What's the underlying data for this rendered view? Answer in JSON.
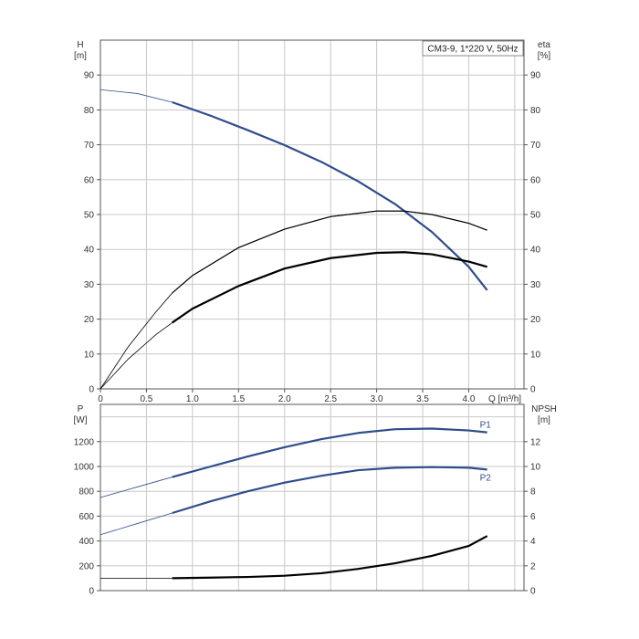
{
  "chart_data": [
    {
      "type": "line",
      "panel": "head-efficiency",
      "legend_text": "CM3-9, 1*220 V, 50Hz",
      "x_label": "Q [m³/h]",
      "left_axis": {
        "label_line1": "H",
        "label_line2": "[m]",
        "range": [
          0,
          100
        ],
        "ticks": [
          0,
          10,
          20,
          30,
          40,
          50,
          60,
          70,
          80,
          90
        ]
      },
      "right_axis": {
        "label_line1": "eta",
        "label_line2": "[%]",
        "range": [
          0,
          100
        ],
        "ticks": [
          0,
          10,
          20,
          30,
          40,
          50,
          60,
          70,
          80,
          90
        ]
      },
      "x_axis": {
        "range": [
          0,
          4.6
        ],
        "ticks": [
          0,
          0.5,
          1.0,
          1.5,
          2.0,
          2.5,
          3.0,
          3.5,
          4.0
        ],
        "tick_labels": [
          "0",
          "0.5",
          "1.0",
          "1.5",
          "2.0",
          "2.5",
          "3.0",
          "3.5",
          "4.0"
        ]
      },
      "grid": true,
      "duty_range_start": 0.78,
      "series": [
        {
          "key": "H",
          "axis": "left",
          "color": "#2f4d8c",
          "x": [
            0,
            0.4,
            0.78,
            1.2,
            1.6,
            2.0,
            2.4,
            2.8,
            3.2,
            3.6,
            4.0,
            4.2
          ],
          "y": [
            85.8,
            84.7,
            82.2,
            78.3,
            74.2,
            69.9,
            65.1,
            59.5,
            53.0,
            45.0,
            35.0,
            28.3
          ]
        },
        {
          "key": "eta-pump",
          "axis": "right",
          "color": "#000000",
          "x": [
            0,
            0.3,
            0.6,
            0.78,
            1.0,
            1.5,
            2.0,
            2.5,
            3.0,
            3.3,
            3.6,
            4.0,
            4.2
          ],
          "y": [
            0,
            12,
            22,
            27.5,
            32.5,
            40.5,
            45.8,
            49.4,
            51.0,
            51.0,
            50.0,
            47.5,
            45.5
          ]
        },
        {
          "key": "eta-total",
          "axis": "right",
          "color": "#000000",
          "x": [
            0,
            0.3,
            0.6,
            0.78,
            1.0,
            1.5,
            2.0,
            2.5,
            3.0,
            3.3,
            3.6,
            4.0,
            4.2
          ],
          "y": [
            0,
            8.5,
            15.5,
            19,
            23,
            29.5,
            34.5,
            37.5,
            39,
            39.2,
            38.6,
            36.5,
            35
          ]
        }
      ]
    },
    {
      "type": "line",
      "panel": "power-npsh",
      "left_axis": {
        "label_line1": "P",
        "label_line2": "[W]",
        "range": [
          0,
          1500
        ],
        "ticks": [
          0,
          200,
          400,
          600,
          800,
          1000,
          1200
        ]
      },
      "right_axis": {
        "label_line1": "NPSH",
        "label_line2": "[m]",
        "range": [
          0,
          15
        ],
        "ticks": [
          0,
          2,
          4,
          6,
          8,
          10,
          12
        ]
      },
      "x_axis": {
        "range": [
          0,
          4.6
        ]
      },
      "grid": true,
      "series": [
        {
          "key": "P1",
          "name": "P1",
          "axis": "left",
          "color": "#2f4d8c",
          "x": [
            0,
            0.4,
            0.78,
            1.2,
            1.6,
            2.0,
            2.4,
            2.8,
            3.2,
            3.6,
            4.0,
            4.2
          ],
          "y": [
            750,
            835,
            915,
            1000,
            1080,
            1155,
            1220,
            1270,
            1300,
            1305,
            1290,
            1275
          ]
        },
        {
          "key": "P2",
          "name": "P2",
          "axis": "left",
          "color": "#2f4d8c",
          "x": [
            0,
            0.4,
            0.78,
            1.2,
            1.6,
            2.0,
            2.4,
            2.8,
            3.2,
            3.6,
            4.0,
            4.2
          ],
          "y": [
            450,
            540,
            625,
            720,
            800,
            870,
            925,
            970,
            990,
            995,
            990,
            975
          ]
        },
        {
          "key": "NPSH",
          "axis": "right",
          "color": "#000000",
          "x": [
            0,
            0.4,
            0.78,
            1.2,
            1.6,
            2.0,
            2.4,
            2.8,
            3.2,
            3.6,
            4.0,
            4.2
          ],
          "y": [
            1.0,
            1.0,
            1.0,
            1.05,
            1.1,
            1.2,
            1.4,
            1.75,
            2.2,
            2.8,
            3.6,
            4.4
          ]
        }
      ]
    }
  ]
}
